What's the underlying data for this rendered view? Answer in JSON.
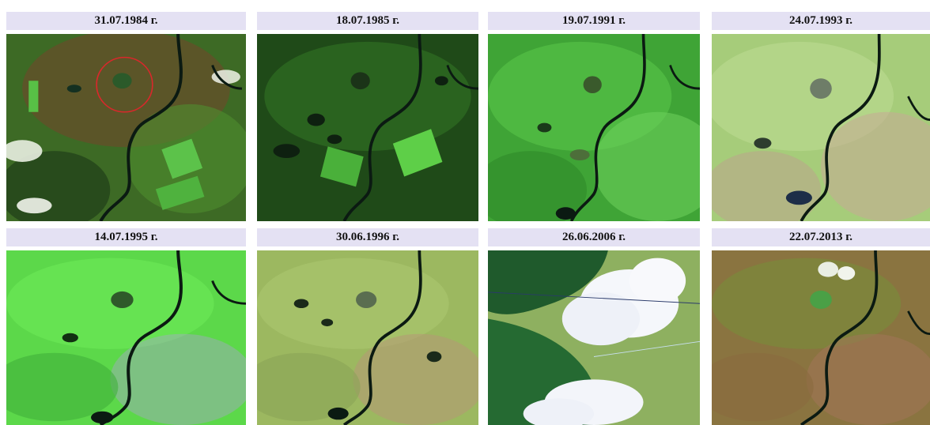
{
  "panels": [
    {
      "date": "31.07.1984 г.",
      "palette": "dark-green-brown",
      "highlight_circle": true
    },
    {
      "date": "18.07.1985 г.",
      "palette": "dark-green"
    },
    {
      "date": "19.07.1991 г.",
      "palette": "bright-green"
    },
    {
      "date": "24.07.1993 г.",
      "palette": "pale-green-pink"
    },
    {
      "date": "14.07.1995 г.",
      "palette": "bright-green-lavender"
    },
    {
      "date": "30.06.1996 г.",
      "palette": "olive-pink"
    },
    {
      "date": "26.06.2006 г.",
      "palette": "dark-forest-clouds"
    },
    {
      "date": "22.07.2013 г.",
      "palette": "olive-brown"
    }
  ],
  "colors": {
    "caption_bg": "#e4e1f3",
    "river": "#0b1a12",
    "highlight": "#d8282b"
  }
}
